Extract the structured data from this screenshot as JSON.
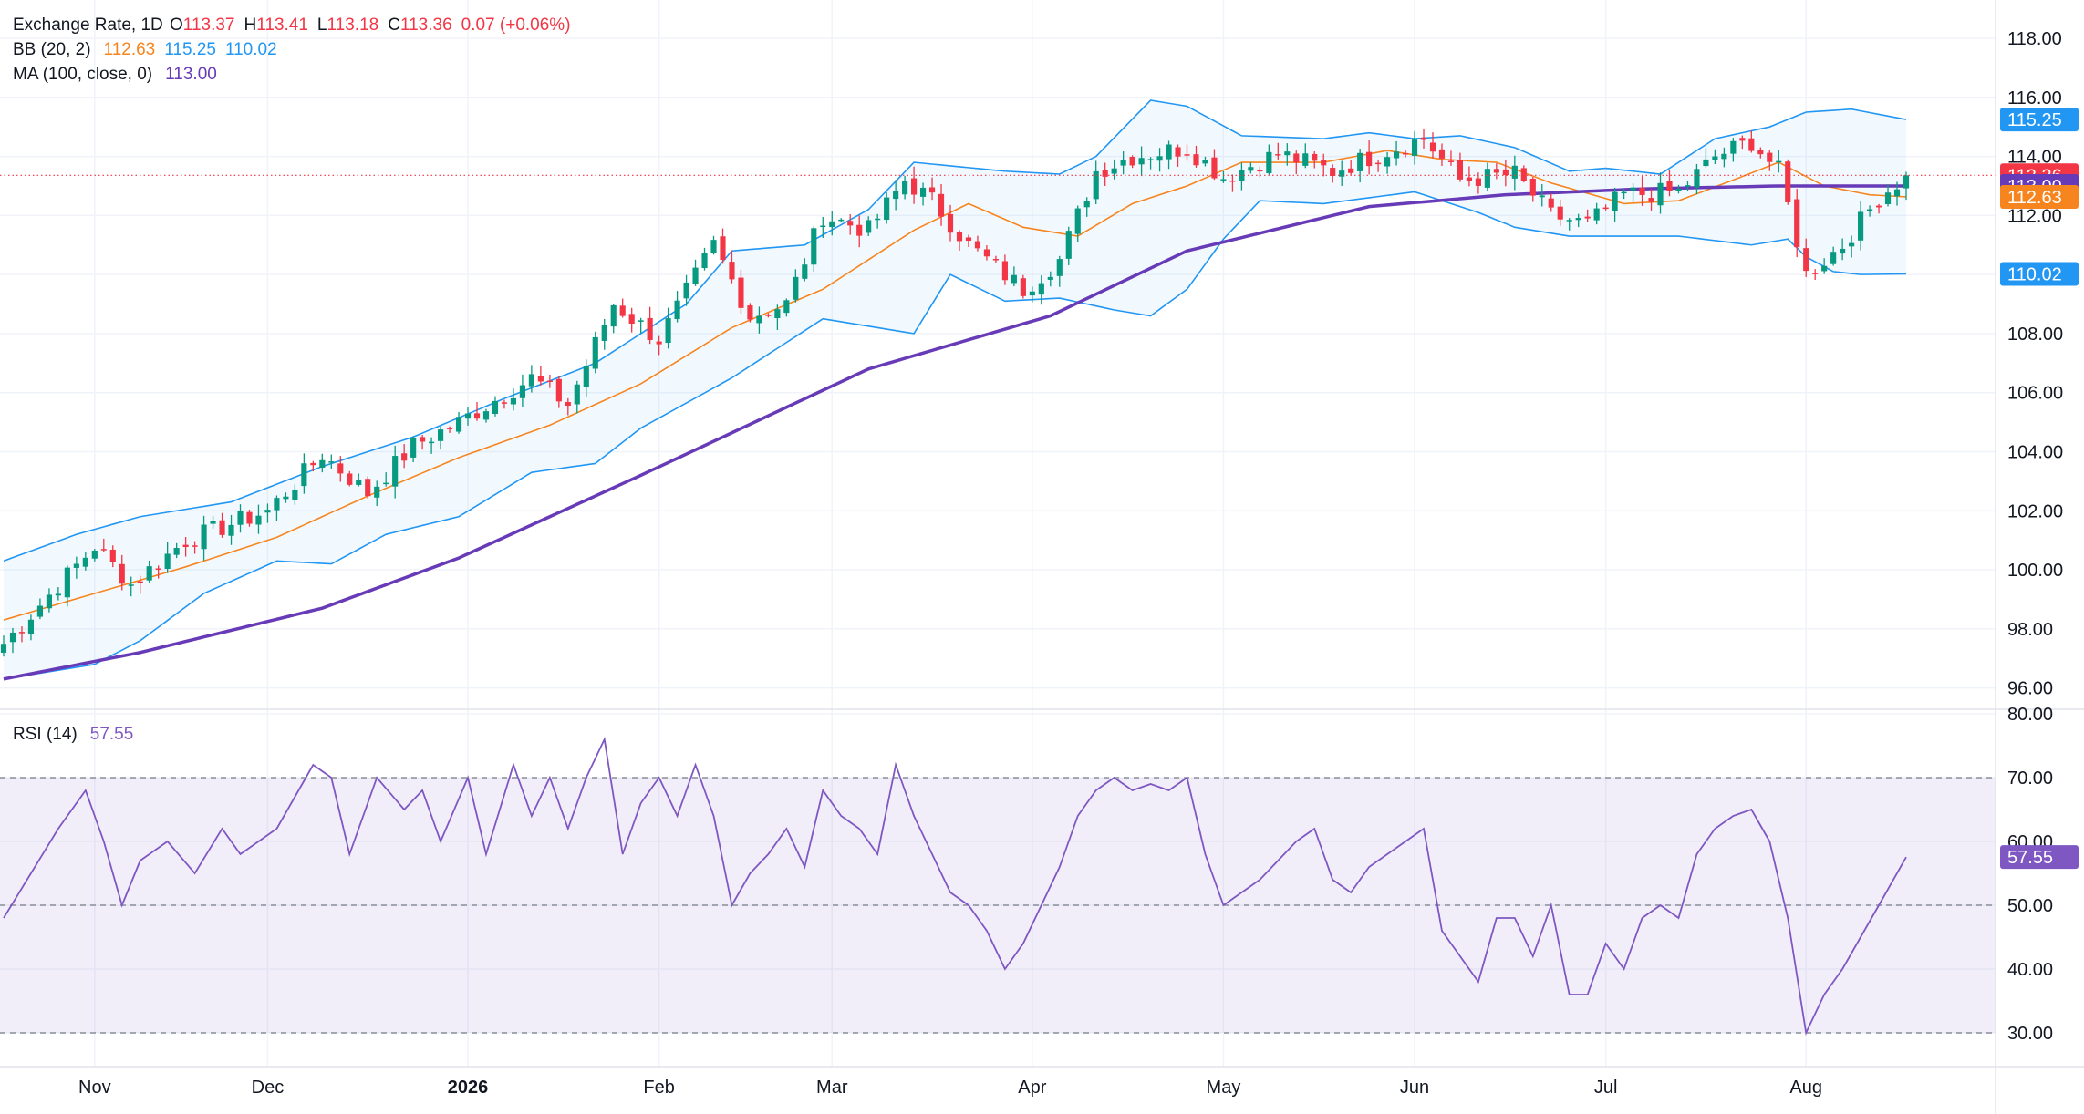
{
  "chart_data": {
    "type": "candlestick",
    "legend": {
      "symbol": "Exchange Rate, 1D",
      "ohlc": {
        "o_label": "O",
        "o": "113.37",
        "h_label": "H",
        "h": "113.41",
        "l_label": "L",
        "l": "113.18",
        "c_label": "C",
        "c": "113.36",
        "change": "0.07 (+0.06%)"
      },
      "bb": {
        "label": "BB (20, 2)",
        "basis": "112.63",
        "upper": "115.25",
        "lower": "110.02"
      },
      "ma": {
        "label": "MA (100, close, 0)",
        "value": "113.00"
      },
      "rsi": {
        "label": "RSI (14)",
        "value": "57.55"
      }
    },
    "price_axis": {
      "ylim": [
        95,
        118
      ],
      "ticks": [
        "118.00",
        "116.00",
        "114.00",
        "112.00",
        "110.00",
        "108.00",
        "106.00",
        "104.00",
        "102.00",
        "100.00",
        "98.00",
        "96.00"
      ],
      "tick_values": [
        118,
        116,
        114,
        112,
        110,
        108,
        106,
        104,
        102,
        100,
        98,
        96
      ],
      "last_price": {
        "label": "113.36",
        "value": 113.36
      }
    },
    "price_badges": [
      {
        "label": "115.25",
        "value": 115.25,
        "color": "#2196f3"
      },
      {
        "label": "113.36",
        "value": 113.36,
        "color": "#f23645"
      },
      {
        "label": "113.00",
        "value": 113.0,
        "color": "#673ab7"
      },
      {
        "label": "112.63",
        "value": 112.63,
        "color": "#f7851f"
      },
      {
        "label": "110.02",
        "value": 110.02,
        "color": "#2196f3"
      }
    ],
    "rsi_axis": {
      "ylim": [
        25,
        80
      ],
      "ticks": [
        "80.00",
        "70.00",
        "60.00",
        "50.00",
        "40.00",
        "30.00"
      ],
      "tick_values": [
        80,
        70,
        60,
        50,
        40,
        30
      ],
      "overbought": 70,
      "middle": 50,
      "oversold": 30,
      "badge": {
        "label": "57.55",
        "value": 57.55
      }
    },
    "x_axis": {
      "labels": [
        "Nov",
        "Dec",
        "2026",
        "Feb",
        "Mar",
        "Apr",
        "May",
        "Jun",
        "Jul",
        "Aug"
      ],
      "bold": [
        false,
        false,
        true,
        false,
        false,
        false,
        false,
        false,
        false,
        false
      ],
      "indices": [
        10,
        29,
        51,
        72,
        91,
        113,
        134,
        155,
        176,
        198
      ],
      "n_bars": 210
    },
    "colors": {
      "up": "#089981",
      "down": "#f23645",
      "bb_band": "#2196f3",
      "bb_basis": "#f7851f",
      "ma": "#673ab7",
      "rsi": "#7e57c2"
    },
    "anchors": {
      "close": [
        [
          0,
          97.5
        ],
        [
          10,
          100.8
        ],
        [
          14,
          99.5
        ],
        [
          20,
          101.0
        ],
        [
          29,
          102.0
        ],
        [
          35,
          103.9
        ],
        [
          40,
          102.6
        ],
        [
          45,
          104.2
        ],
        [
          50,
          105.0
        ],
        [
          58,
          106.5
        ],
        [
          62,
          105.6
        ],
        [
          67,
          109.0
        ],
        [
          72,
          107.8
        ],
        [
          78,
          111.0
        ],
        [
          82,
          108.6
        ],
        [
          86,
          109.0
        ],
        [
          90,
          112.0
        ],
        [
          95,
          111.5
        ],
        [
          99,
          113.2
        ],
        [
          102,
          112.5
        ],
        [
          106,
          111.0
        ],
        [
          112,
          109.5
        ],
        [
          116,
          110.5
        ],
        [
          120,
          113.5
        ],
        [
          124,
          114.0
        ],
        [
          130,
          114.3
        ],
        [
          134,
          113.3
        ],
        [
          140,
          114.1
        ],
        [
          146,
          113.5
        ],
        [
          152,
          114.2
        ],
        [
          156,
          114.6
        ],
        [
          160,
          113.2
        ],
        [
          166,
          113.4
        ],
        [
          170,
          112.0
        ],
        [
          174,
          111.7
        ],
        [
          178,
          112.7
        ],
        [
          184,
          112.8
        ],
        [
          188,
          114.0
        ],
        [
          192,
          114.5
        ],
        [
          195,
          113.5
        ],
        [
          198,
          110.0
        ],
        [
          202,
          111.0
        ],
        [
          206,
          112.6
        ],
        [
          209,
          113.36
        ]
      ],
      "ma100": [
        [
          0,
          96.3
        ],
        [
          15,
          97.2
        ],
        [
          35,
          98.7
        ],
        [
          50,
          100.4
        ],
        [
          70,
          103.2
        ],
        [
          95,
          106.8
        ],
        [
          115,
          108.6
        ],
        [
          130,
          110.8
        ],
        [
          150,
          112.3
        ],
        [
          165,
          112.7
        ],
        [
          180,
          112.9
        ],
        [
          195,
          113.0
        ],
        [
          209,
          113.0
        ]
      ],
      "bb_upper": [
        [
          0,
          100.3
        ],
        [
          8,
          101.2
        ],
        [
          15,
          101.8
        ],
        [
          25,
          102.3
        ],
        [
          35,
          103.5
        ],
        [
          45,
          104.5
        ],
        [
          55,
          105.8
        ],
        [
          65,
          107.0
        ],
        [
          75,
          109.0
        ],
        [
          80,
          110.8
        ],
        [
          88,
          111.0
        ],
        [
          95,
          112.2
        ],
        [
          100,
          113.8
        ],
        [
          110,
          113.5
        ],
        [
          116,
          113.4
        ],
        [
          120,
          114.0
        ],
        [
          126,
          115.9
        ],
        [
          130,
          115.7
        ],
        [
          136,
          114.7
        ],
        [
          145,
          114.6
        ],
        [
          150,
          114.8
        ],
        [
          155,
          114.6
        ],
        [
          160,
          114.7
        ],
        [
          166,
          114.3
        ],
        [
          172,
          113.5
        ],
        [
          176,
          113.6
        ],
        [
          182,
          113.4
        ],
        [
          188,
          114.6
        ],
        [
          194,
          115.0
        ],
        [
          198,
          115.5
        ],
        [
          203,
          115.6
        ],
        [
          209,
          115.25
        ]
      ],
      "bb_lower": [
        [
          0,
          96.3
        ],
        [
          10,
          96.8
        ],
        [
          15,
          97.6
        ],
        [
          22,
          99.2
        ],
        [
          30,
          100.3
        ],
        [
          36,
          100.2
        ],
        [
          42,
          101.2
        ],
        [
          50,
          101.8
        ],
        [
          58,
          103.3
        ],
        [
          65,
          103.6
        ],
        [
          70,
          104.8
        ],
        [
          80,
          106.5
        ],
        [
          90,
          108.5
        ],
        [
          100,
          108.0
        ],
        [
          104,
          110.0
        ],
        [
          110,
          109.1
        ],
        [
          116,
          109.2
        ],
        [
          122,
          108.8
        ],
        [
          126,
          108.6
        ],
        [
          130,
          109.5
        ],
        [
          134,
          111.2
        ],
        [
          138,
          112.5
        ],
        [
          145,
          112.4
        ],
        [
          155,
          112.8
        ],
        [
          162,
          112.1
        ],
        [
          166,
          111.6
        ],
        [
          172,
          111.3
        ],
        [
          178,
          111.3
        ],
        [
          184,
          111.3
        ],
        [
          192,
          111.0
        ],
        [
          196,
          111.2
        ],
        [
          198,
          110.6
        ],
        [
          201,
          110.1
        ],
        [
          204,
          110.0
        ],
        [
          209,
          110.02
        ]
      ],
      "bb_basis": [
        [
          0,
          98.3
        ],
        [
          10,
          99.2
        ],
        [
          20,
          100.1
        ],
        [
          30,
          101.1
        ],
        [
          40,
          102.5
        ],
        [
          50,
          103.8
        ],
        [
          60,
          104.9
        ],
        [
          70,
          106.3
        ],
        [
          80,
          108.2
        ],
        [
          90,
          109.5
        ],
        [
          100,
          111.5
        ],
        [
          106,
          112.4
        ],
        [
          112,
          111.6
        ],
        [
          118,
          111.3
        ],
        [
          124,
          112.4
        ],
        [
          130,
          113.0
        ],
        [
          136,
          113.8
        ],
        [
          145,
          113.8
        ],
        [
          152,
          114.2
        ],
        [
          158,
          113.9
        ],
        [
          164,
          113.8
        ],
        [
          170,
          113.1
        ],
        [
          178,
          112.4
        ],
        [
          184,
          112.5
        ],
        [
          190,
          113.2
        ],
        [
          195,
          113.8
        ],
        [
          200,
          113.0
        ],
        [
          205,
          112.7
        ],
        [
          209,
          112.63
        ]
      ],
      "rsi": [
        [
          0,
          48
        ],
        [
          3,
          55
        ],
        [
          6,
          62
        ],
        [
          9,
          68
        ],
        [
          11,
          60
        ],
        [
          13,
          50
        ],
        [
          15,
          57
        ],
        [
          18,
          60
        ],
        [
          21,
          55
        ],
        [
          24,
          62
        ],
        [
          26,
          58
        ],
        [
          28,
          60
        ],
        [
          30,
          62
        ],
        [
          34,
          72
        ],
        [
          36,
          70
        ],
        [
          38,
          58
        ],
        [
          41,
          70
        ],
        [
          44,
          65
        ],
        [
          46,
          68
        ],
        [
          48,
          60
        ],
        [
          51,
          70
        ],
        [
          53,
          58
        ],
        [
          56,
          72
        ],
        [
          58,
          64
        ],
        [
          60,
          70
        ],
        [
          62,
          62
        ],
        [
          64,
          70
        ],
        [
          66,
          76
        ],
        [
          68,
          58
        ],
        [
          70,
          66
        ],
        [
          72,
          70
        ],
        [
          74,
          64
        ],
        [
          76,
          72
        ],
        [
          78,
          64
        ],
        [
          80,
          50
        ],
        [
          82,
          55
        ],
        [
          84,
          58
        ],
        [
          86,
          62
        ],
        [
          88,
          56
        ],
        [
          90,
          68
        ],
        [
          92,
          64
        ],
        [
          94,
          62
        ],
        [
          96,
          58
        ],
        [
          98,
          72
        ],
        [
          100,
          64
        ],
        [
          102,
          58
        ],
        [
          104,
          52
        ],
        [
          106,
          50
        ],
        [
          108,
          46
        ],
        [
          110,
          40
        ],
        [
          112,
          44
        ],
        [
          114,
          50
        ],
        [
          116,
          56
        ],
        [
          118,
          64
        ],
        [
          120,
          68
        ],
        [
          122,
          70
        ],
        [
          124,
          68
        ],
        [
          126,
          69
        ],
        [
          128,
          68
        ],
        [
          130,
          70
        ],
        [
          132,
          58
        ],
        [
          134,
          50
        ],
        [
          136,
          52
        ],
        [
          138,
          54
        ],
        [
          140,
          57
        ],
        [
          142,
          60
        ],
        [
          144,
          62
        ],
        [
          146,
          54
        ],
        [
          148,
          52
        ],
        [
          150,
          56
        ],
        [
          152,
          58
        ],
        [
          154,
          60
        ],
        [
          156,
          62
        ],
        [
          158,
          46
        ],
        [
          160,
          42
        ],
        [
          162,
          38
        ],
        [
          164,
          48
        ],
        [
          166,
          48
        ],
        [
          168,
          42
        ],
        [
          170,
          50
        ],
        [
          172,
          36
        ],
        [
          174,
          36
        ],
        [
          176,
          44
        ],
        [
          178,
          40
        ],
        [
          180,
          48
        ],
        [
          182,
          50
        ],
        [
          184,
          48
        ],
        [
          186,
          58
        ],
        [
          188,
          62
        ],
        [
          190,
          64
        ],
        [
          192,
          65
        ],
        [
          194,
          60
        ],
        [
          196,
          48
        ],
        [
          198,
          30
        ],
        [
          200,
          36
        ],
        [
          202,
          40
        ],
        [
          204,
          45
        ],
        [
          206,
          50
        ],
        [
          209,
          57.55
        ]
      ]
    }
  }
}
